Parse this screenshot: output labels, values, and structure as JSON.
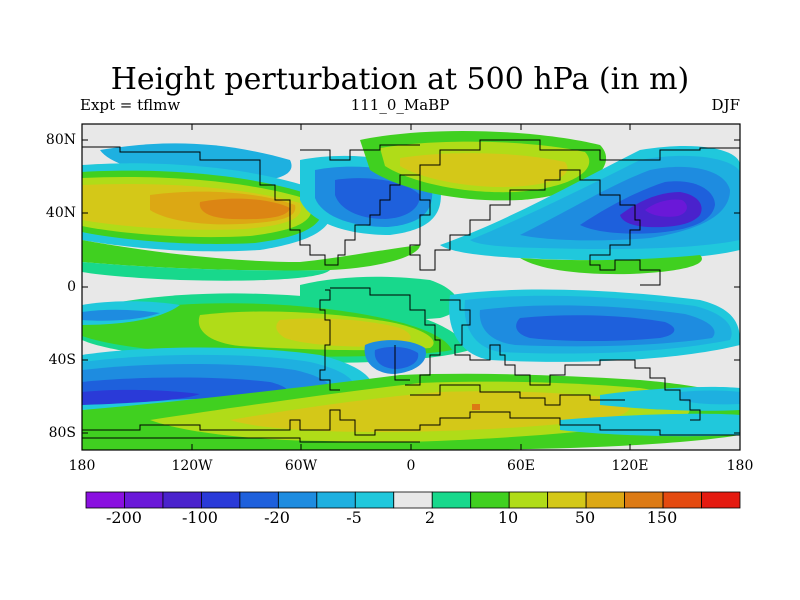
{
  "title": "Height perturbation at 500 hPa (in m)",
  "left_label": "Expt = tflmw",
  "center_label": "111_0_MaBP",
  "right_label": "DJF",
  "lat_labels": [
    "80N",
    "40N",
    "0",
    "40S",
    "80S"
  ],
  "lon_labels": [
    "180",
    "120W",
    "60W",
    "0",
    "60E",
    "120E",
    "180"
  ],
  "colorbar": {
    "colors": [
      "#8a10e0",
      "#6a18d8",
      "#4a22cc",
      "#2a3ad8",
      "#1e60dc",
      "#1e8ce0",
      "#1eb0e0",
      "#20c8dc",
      "#e8e8e8",
      "#18d88c",
      "#40d020",
      "#b0dc18",
      "#d4c818",
      "#dca814",
      "#dc7a14",
      "#e44a10",
      "#e41a10"
    ],
    "labels": [
      "-200",
      "-100",
      "-20",
      "-5",
      "2",
      "10",
      "50",
      "150"
    ]
  },
  "field_levels": [
    "strong_neg",
    "neg",
    "mid_neg",
    "weak_neg",
    "neutral",
    "weak_pos",
    "mid_pos",
    "pos",
    "strong_pos"
  ]
}
